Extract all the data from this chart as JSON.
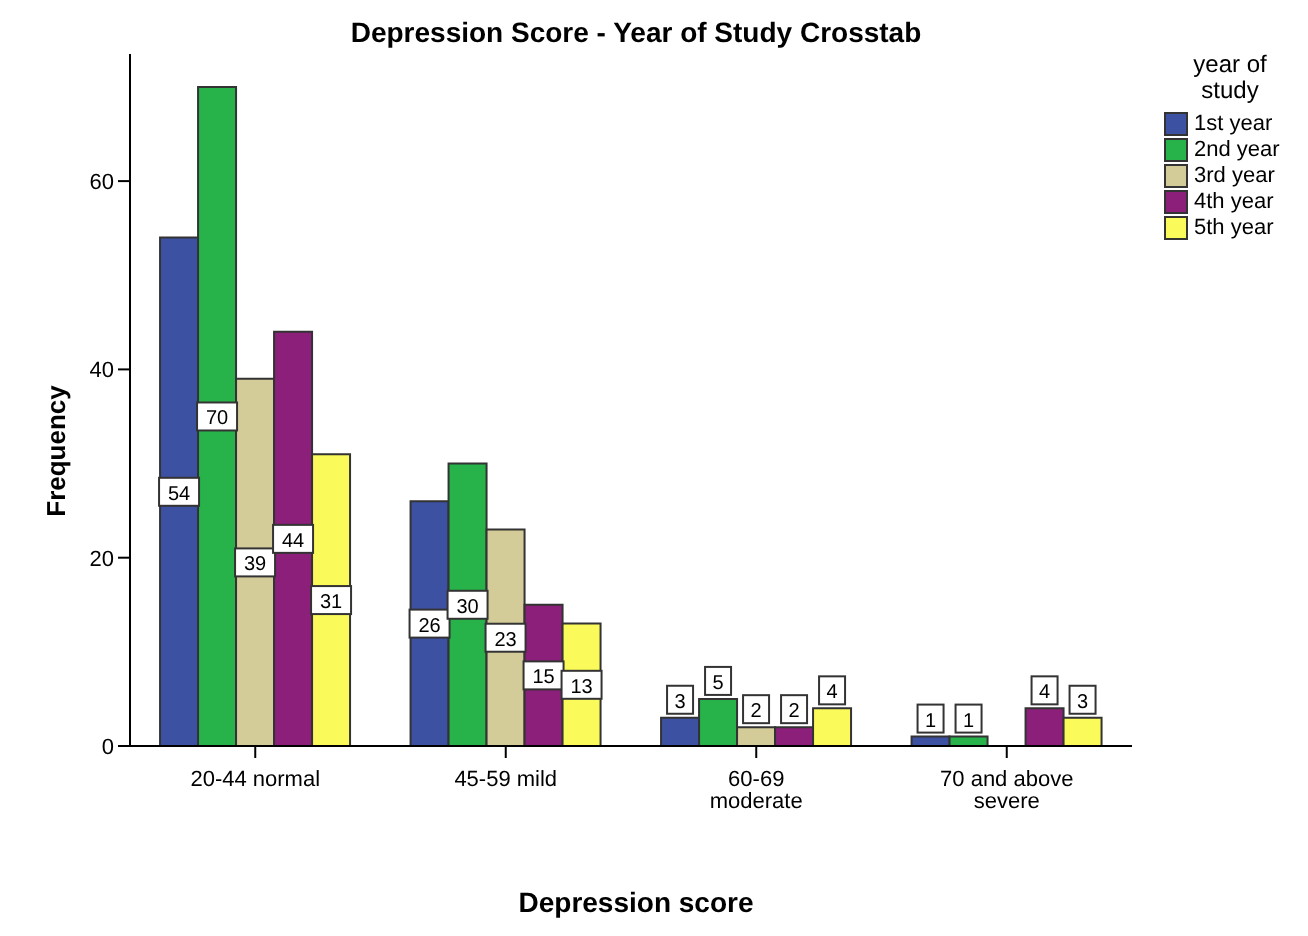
{
  "chart_data": {
    "type": "bar",
    "title": "Depression Score - Year of Study Crosstab",
    "xlabel": "Depression score",
    "ylabel": "Frequency",
    "legend_title": "year of study",
    "categories": [
      "20-44 normal",
      "45-59 mild",
      "60-69 moderate",
      "70 and above severe"
    ],
    "series": [
      {
        "name": "1st year",
        "color": "#3d51a3",
        "values": [
          54,
          26,
          3,
          1
        ]
      },
      {
        "name": "2nd year",
        "color": "#27b34a",
        "values": [
          70,
          30,
          5,
          1
        ]
      },
      {
        "name": "3rd year",
        "color": "#d4cc98",
        "values": [
          39,
          23,
          2,
          null
        ]
      },
      {
        "name": "4th year",
        "color": "#8b1f7a",
        "values": [
          44,
          15,
          2,
          4
        ]
      },
      {
        "name": "5th year",
        "color": "#fafa5a",
        "values": [
          31,
          13,
          4,
          3
        ]
      }
    ],
    "ylim": [
      0,
      73.5
    ],
    "yticks": [
      0,
      20,
      40,
      60
    ],
    "grid": false,
    "legend": "top right",
    "data_labels": true
  }
}
